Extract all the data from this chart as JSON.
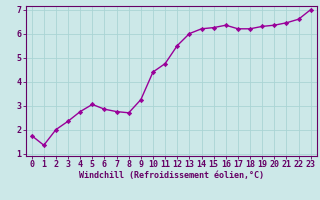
{
  "x": [
    0,
    1,
    2,
    3,
    4,
    5,
    6,
    7,
    8,
    9,
    10,
    11,
    12,
    13,
    14,
    15,
    16,
    17,
    18,
    19,
    20,
    21,
    22,
    23
  ],
  "y": [
    1.75,
    1.35,
    2.0,
    2.35,
    2.75,
    3.05,
    2.85,
    2.75,
    2.7,
    3.25,
    4.4,
    4.75,
    5.5,
    6.0,
    6.2,
    6.25,
    6.35,
    6.2,
    6.2,
    6.3,
    6.35,
    6.45,
    6.6,
    7.0
  ],
  "line_color": "#990099",
  "marker": "D",
  "marker_size": 2.2,
  "bg_color": "#cce8e8",
  "grid_color": "#aad4d4",
  "xlabel": "Windchill (Refroidissement éolien,°C)",
  "xlim_min": -0.5,
  "xlim_max": 23.5,
  "ylim_min": 0.9,
  "ylim_max": 7.15,
  "yticks": [
    1,
    2,
    3,
    4,
    5,
    6,
    7
  ],
  "xticks": [
    0,
    1,
    2,
    3,
    4,
    5,
    6,
    7,
    8,
    9,
    10,
    11,
    12,
    13,
    14,
    15,
    16,
    17,
    18,
    19,
    20,
    21,
    22,
    23
  ],
  "xlabel_color": "#660066",
  "xlabel_fontsize": 6.0,
  "tick_label_color": "#660066",
  "tick_fontsize": 6.0,
  "spine_color": "#660066",
  "line_width": 1.0
}
